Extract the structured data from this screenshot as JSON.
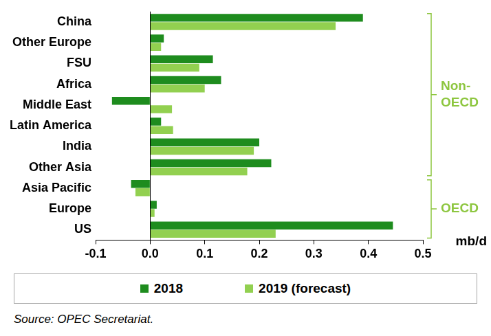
{
  "chart_data": {
    "type": "bar",
    "orientation": "horizontal",
    "categories": [
      "China",
      "Other Europe",
      "FSU",
      "Africa",
      "Middle East",
      "Latin America",
      "India",
      "Other Asia",
      "Asia Pacific",
      "Europe",
      "US"
    ],
    "series": [
      {
        "name": "2018",
        "color": "#1e8c1e",
        "values": [
          0.39,
          0.025,
          0.115,
          0.13,
          -0.07,
          0.02,
          0.2,
          0.222,
          -0.035,
          0.012,
          0.445
        ]
      },
      {
        "name": "2019 (forecast)",
        "color": "#92d050",
        "values": [
          0.34,
          0.02,
          0.09,
          0.1,
          0.04,
          0.042,
          0.19,
          0.178,
          -0.027,
          0.008,
          0.23
        ]
      }
    ],
    "x_label": "mb/d",
    "xlim": [
      -0.1,
      0.5
    ],
    "xticks": [
      -0.1,
      {
        "value": 0,
        "label": "0.0"
      },
      0.1,
      0.2,
      0.3,
      0.4,
      0.5
    ],
    "grid": false,
    "legend": "bottom",
    "groups": [
      {
        "label": "Non-OECD",
        "from": "China",
        "to": "Other Asia"
      },
      {
        "label": "OECD",
        "from": "Asia Pacific",
        "to": "US"
      }
    ],
    "source": "Source: OPEC Secretariat."
  }
}
